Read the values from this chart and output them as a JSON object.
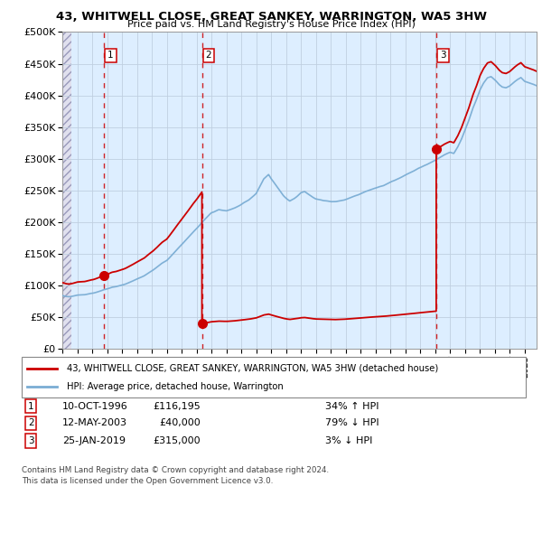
{
  "title_line1": "43, WHITWELL CLOSE, GREAT SANKEY, WARRINGTON, WA5 3HW",
  "title_line2": "Price paid vs. HM Land Registry's House Price Index (HPI)",
  "sale1_date_label": "10-OCT-1996",
  "sale1_price": 116195,
  "sale1_hpi_pct": "34% ↑ HPI",
  "sale1_x": 1996.78,
  "sale2_date_label": "12-MAY-2003",
  "sale2_price": 40000,
  "sale2_hpi_pct": "79% ↓ HPI",
  "sale2_x": 2003.36,
  "sale3_date_label": "25-JAN-2019",
  "sale3_price": 315000,
  "sale3_hpi_pct": "3% ↓ HPI",
  "sale3_x": 2019.07,
  "legend_line1": "43, WHITWELL CLOSE, GREAT SANKEY, WARRINGTON, WA5 3HW (detached house)",
  "legend_line2": "HPI: Average price, detached house, Warrington",
  "footer1": "Contains HM Land Registry data © Crown copyright and database right 2024.",
  "footer2": "This data is licensed under the Open Government Licence v3.0.",
  "red_color": "#cc0000",
  "blue_color": "#7aadd4",
  "bg_hatch_color": "#e8e8f0",
  "bg_plain_color": "#ddeeff",
  "grid_color": "#c0cfe0",
  "ylim": [
    0,
    500000
  ],
  "xlim_start": 1994.0,
  "xlim_end": 2025.8
}
